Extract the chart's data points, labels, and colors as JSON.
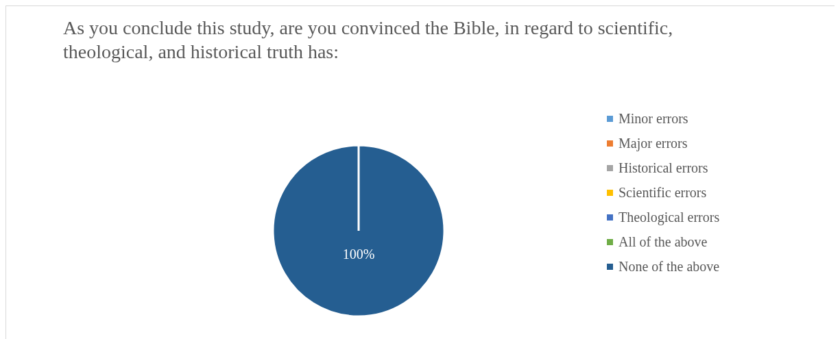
{
  "chart_data": {
    "type": "pie",
    "title": "As you conclude this study, are you convinced the Bible, in regard to scientific, theological, and historical truth has:",
    "categories": [
      "Minor errors",
      "Major errors",
      "Historical errors",
      "Scientific errors",
      "Theological errors",
      "All of the above",
      "None of the above"
    ],
    "values": [
      0,
      0,
      0,
      0,
      0,
      0,
      100
    ],
    "colors": [
      "#5b9bd5",
      "#ed7d31",
      "#a5a5a5",
      "#ffc000",
      "#4472c4",
      "#70ad47",
      "#255e91"
    ],
    "value_labels": [
      null,
      null,
      null,
      null,
      null,
      null,
      "100%"
    ],
    "legend": "right"
  }
}
